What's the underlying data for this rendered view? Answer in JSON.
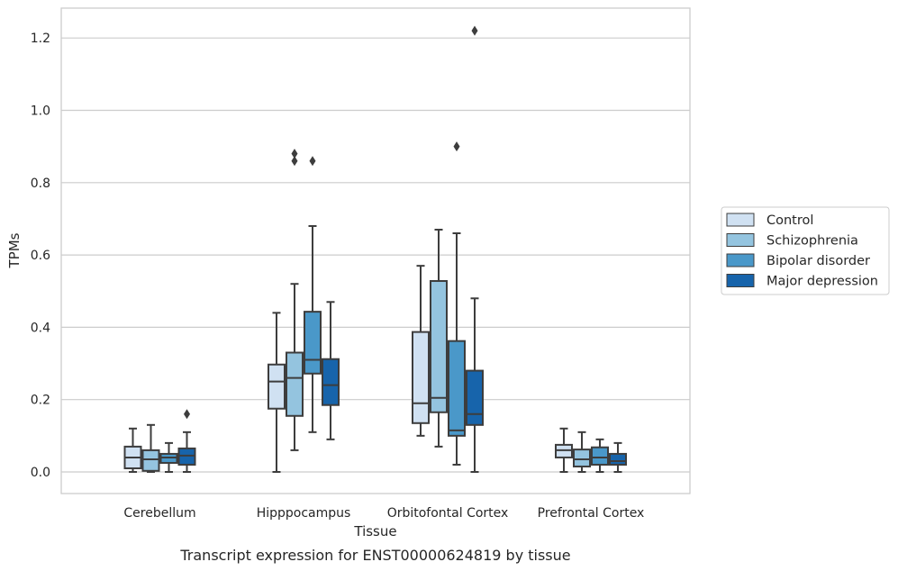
{
  "chart_data": {
    "type": "box",
    "title": "",
    "caption": "Transcript expression for ENST00000624819 by tissue",
    "xlabel": "Tissue",
    "ylabel": "TPMs",
    "ylim": [
      -0.06,
      1.28
    ],
    "yticks": [
      0.0,
      0.2,
      0.4,
      0.6,
      0.8,
      1.0,
      1.2
    ],
    "ytick_labels": [
      "0.0",
      "0.2",
      "0.4",
      "0.6",
      "0.8",
      "1.0",
      "1.2"
    ],
    "grid": "horizontal",
    "legend_position": "right",
    "categories": [
      "Cerebellum",
      "Hipppocampus",
      "Orbitofontal Cortex",
      "Prefrontal Cortex"
    ],
    "series": [
      {
        "name": "Control",
        "color": "#d0e1f2",
        "boxes": [
          {
            "whisker_low": 0.0,
            "q1": 0.01,
            "median": 0.04,
            "q3": 0.07,
            "whisker_high": 0.12,
            "outliers": []
          },
          {
            "whisker_low": 0.0,
            "q1": 0.175,
            "median": 0.25,
            "q3": 0.297,
            "whisker_high": 0.44,
            "outliers": []
          },
          {
            "whisker_low": 0.1,
            "q1": 0.135,
            "median": 0.19,
            "q3": 0.387,
            "whisker_high": 0.57,
            "outliers": []
          },
          {
            "whisker_low": 0.0,
            "q1": 0.04,
            "median": 0.06,
            "q3": 0.075,
            "whisker_high": 0.12,
            "outliers": []
          }
        ]
      },
      {
        "name": "Schizophrenia",
        "color": "#94c4df",
        "boxes": [
          {
            "whisker_low": 0.0,
            "q1": 0.003,
            "median": 0.035,
            "q3": 0.06,
            "whisker_high": 0.13,
            "outliers": []
          },
          {
            "whisker_low": 0.06,
            "q1": 0.155,
            "median": 0.26,
            "q3": 0.33,
            "whisker_high": 0.52,
            "outliers": [
              0.86,
              0.88
            ]
          },
          {
            "whisker_low": 0.07,
            "q1": 0.165,
            "median": 0.205,
            "q3": 0.528,
            "whisker_high": 0.67,
            "outliers": []
          },
          {
            "whisker_low": 0.0,
            "q1": 0.015,
            "median": 0.035,
            "q3": 0.062,
            "whisker_high": 0.11,
            "outliers": []
          }
        ]
      },
      {
        "name": "Bipolar disorder",
        "color": "#4a98c9",
        "boxes": [
          {
            "whisker_low": 0.0,
            "q1": 0.025,
            "median": 0.04,
            "q3": 0.05,
            "whisker_high": 0.08,
            "outliers": []
          },
          {
            "whisker_low": 0.11,
            "q1": 0.272,
            "median": 0.31,
            "q3": 0.443,
            "whisker_high": 0.68,
            "outliers": [
              0.86
            ]
          },
          {
            "whisker_low": 0.02,
            "q1": 0.1,
            "median": 0.115,
            "q3": 0.362,
            "whisker_high": 0.66,
            "outliers": [
              0.9
            ]
          },
          {
            "whisker_low": 0.0,
            "q1": 0.02,
            "median": 0.04,
            "q3": 0.068,
            "whisker_high": 0.09,
            "outliers": []
          }
        ]
      },
      {
        "name": "Major depression",
        "color": "#1764ab",
        "boxes": [
          {
            "whisker_low": 0.0,
            "q1": 0.02,
            "median": 0.045,
            "q3": 0.065,
            "whisker_high": 0.11,
            "outliers": [
              0.16
            ]
          },
          {
            "whisker_low": 0.09,
            "q1": 0.185,
            "median": 0.24,
            "q3": 0.312,
            "whisker_high": 0.47,
            "outliers": []
          },
          {
            "whisker_low": 0.0,
            "q1": 0.13,
            "median": 0.16,
            "q3": 0.28,
            "whisker_high": 0.48,
            "outliers": [
              1.22
            ]
          },
          {
            "whisker_low": 0.0,
            "q1": 0.02,
            "median": 0.03,
            "q3": 0.05,
            "whisker_high": 0.08,
            "outliers": []
          }
        ]
      }
    ]
  }
}
